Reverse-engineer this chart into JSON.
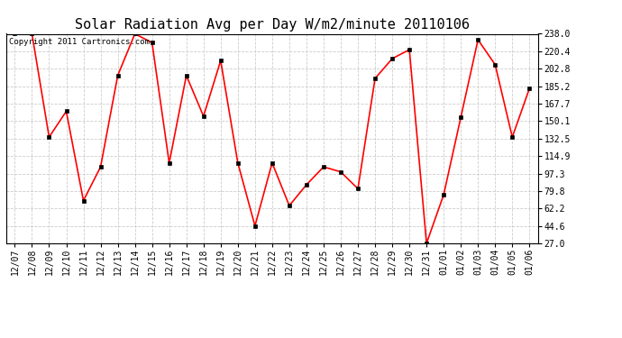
{
  "title": "Solar Radiation Avg per Day W/m2/minute 20110106",
  "copyright": "Copyright 2011 Cartronics.com",
  "dates": [
    "12/07",
    "12/08",
    "12/09",
    "12/10",
    "12/11",
    "12/12",
    "12/13",
    "12/14",
    "12/15",
    "12/16",
    "12/17",
    "12/18",
    "12/19",
    "12/20",
    "12/21",
    "12/22",
    "12/23",
    "12/24",
    "12/25",
    "12/26",
    "12/27",
    "12/28",
    "12/29",
    "12/30",
    "12/31",
    "01/01",
    "01/02",
    "01/03",
    "01/04",
    "01/05",
    "01/06"
  ],
  "values": [
    238.0,
    238.0,
    134.0,
    160.0,
    70.0,
    104.0,
    196.0,
    238.0,
    229.0,
    108.0,
    196.0,
    155.0,
    211.0,
    108.0,
    44.6,
    108.0,
    65.0,
    86.0,
    104.0,
    99.0,
    82.0,
    193.0,
    213.0,
    222.0,
    27.0,
    76.0,
    154.0,
    232.0,
    207.0,
    134.0,
    183.0
  ],
  "line_color": "#ff0000",
  "marker_color": "#000000",
  "bg_color": "#ffffff",
  "grid_color": "#cccccc",
  "ylim_min": 27.0,
  "ylim_max": 238.0,
  "yticks": [
    27.0,
    44.6,
    62.2,
    79.8,
    97.3,
    114.9,
    132.5,
    150.1,
    167.7,
    185.2,
    202.8,
    220.4,
    238.0
  ],
  "title_fontsize": 11,
  "tick_fontsize": 7,
  "copyright_fontsize": 6.5
}
